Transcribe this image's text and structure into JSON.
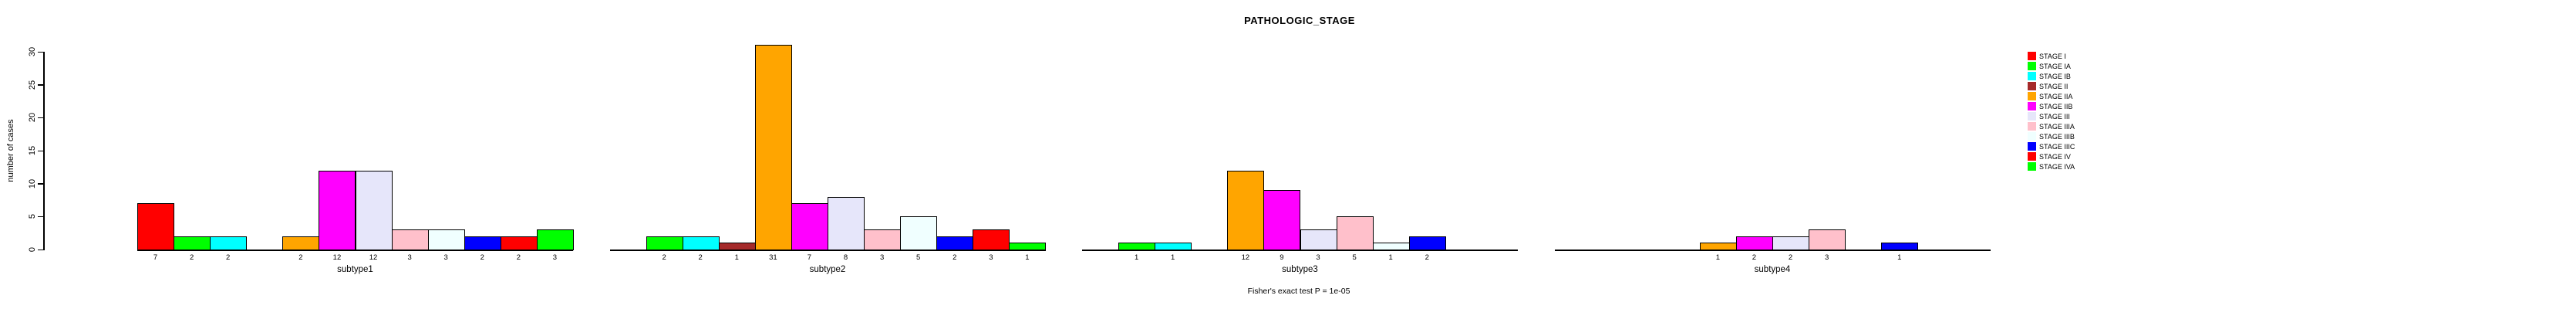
{
  "title": "PATHOLOGIC_STAGE",
  "footer": "Fisher's exact test P = 1e-05",
  "ylabel": "number of cases",
  "legend": {
    "items": [
      {
        "label": "STAGE I",
        "color": "#FF0000"
      },
      {
        "label": "STAGE IA",
        "color": "#00FF00"
      },
      {
        "label": "STAGE IB",
        "color": "#00FFFF"
      },
      {
        "label": "STAGE II",
        "color": "#A52A2A"
      },
      {
        "label": "STAGE IIA",
        "color": "#FFA500"
      },
      {
        "label": "STAGE IIB",
        "color": "#FF00FF"
      },
      {
        "label": "STAGE III",
        "color": "#E6E6FA"
      },
      {
        "label": "STAGE IIIA",
        "color": "#FFC0CB"
      },
      {
        "label": "STAGE IIIB",
        "color": "#F0FFFF"
      },
      {
        "label": "STAGE IIIC",
        "color": "#0000FF"
      },
      {
        "label": "STAGE IV",
        "color": "#FF0000"
      },
      {
        "label": "STAGE IVA",
        "color": "#00FF00"
      }
    ]
  },
  "chart_data": {
    "type": "bar",
    "title": "PATHOLOGIC_STAGE",
    "xlabel": "",
    "ylabel": "number of cases",
    "ylim": [
      0,
      30
    ],
    "yticks": [
      0,
      5,
      10,
      15,
      20,
      25,
      30
    ],
    "grid": false,
    "legend_position": "right",
    "annotation": "Fisher's exact test P = 1e-05",
    "categories": [
      "STAGE I",
      "STAGE IA",
      "STAGE IB",
      "STAGE II",
      "STAGE IIA",
      "STAGE IIB",
      "STAGE III",
      "STAGE IIIA",
      "STAGE IIIB",
      "STAGE IIIC",
      "STAGE IV",
      "STAGE IVA"
    ],
    "colors": [
      "#FF0000",
      "#00FF00",
      "#00FFFF",
      "#A52A2A",
      "#FFA500",
      "#FF00FF",
      "#E6E6FA",
      "#FFC0CB",
      "#F0FFFF",
      "#0000FF",
      "#FF0000",
      "#00FF00"
    ],
    "series": [
      {
        "name": "subtype1",
        "values": [
          7,
          2,
          2,
          0,
          2,
          12,
          12,
          3,
          3,
          2,
          2,
          3
        ]
      },
      {
        "name": "subtype2",
        "values": [
          0,
          2,
          2,
          1,
          31,
          7,
          8,
          3,
          5,
          2,
          3,
          1
        ]
      },
      {
        "name": "subtype3",
        "values": [
          0,
          1,
          1,
          0,
          12,
          9,
          3,
          5,
          1,
          2,
          0,
          0
        ]
      },
      {
        "name": "subtype4",
        "values": [
          0,
          0,
          0,
          0,
          1,
          2,
          2,
          3,
          0,
          1,
          0,
          0
        ]
      }
    ],
    "bar_value_labels_shown_only_for_nonzero": true
  }
}
